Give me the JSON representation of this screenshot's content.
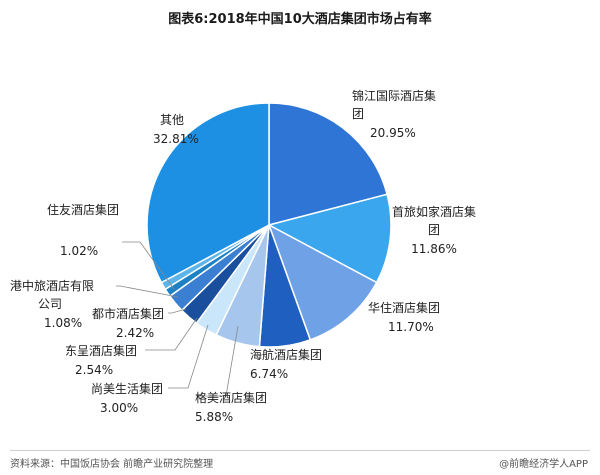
{
  "chart_data": {
    "type": "pie",
    "title": "图表6:2018年中国10大酒店集团市场占有率",
    "start_angle_deg": 0,
    "direction": "clockwise",
    "slices": [
      {
        "name": "锦江国际酒店集团",
        "value": 20.95,
        "label": "20.95%",
        "color": "#2e75d6"
      },
      {
        "name": "首旅如家酒店集团",
        "value": 11.86,
        "label": "11.86%",
        "color": "#3aa6ee"
      },
      {
        "name": "华住酒店集团",
        "value": 11.7,
        "label": "11.70%",
        "color": "#6fa1e6"
      },
      {
        "name": "海航酒店集团",
        "value": 6.74,
        "label": "6.74%",
        "color": "#1f5fbf"
      },
      {
        "name": "格美酒店集团",
        "value": 5.88,
        "label": "5.88%",
        "color": "#a6c6ee"
      },
      {
        "name": "尚美生活集团",
        "value": 3.0,
        "label": "3.00%",
        "color": "#c9e6fa"
      },
      {
        "name": "东呈酒店集团",
        "value": 2.54,
        "label": "2.54%",
        "color": "#1a4f9e"
      },
      {
        "name": "都市酒店集团",
        "value": 2.42,
        "label": "2.42%",
        "color": "#3a7fd1"
      },
      {
        "name": "港中旅酒店有限公司",
        "value": 1.08,
        "label": "1.08%",
        "color": "#1c82c4"
      },
      {
        "name": "住友酒店集团",
        "value": 1.02,
        "label": "1.02%",
        "color": "#5cb4e8"
      },
      {
        "name": "其他",
        "value": 32.81,
        "label": "32.81%",
        "color": "#1e90e4"
      }
    ]
  },
  "footer": {
    "source": "资料来源：中国饭店协会 前瞻产业研究院整理",
    "brand": "@前瞻经济学人APP"
  }
}
